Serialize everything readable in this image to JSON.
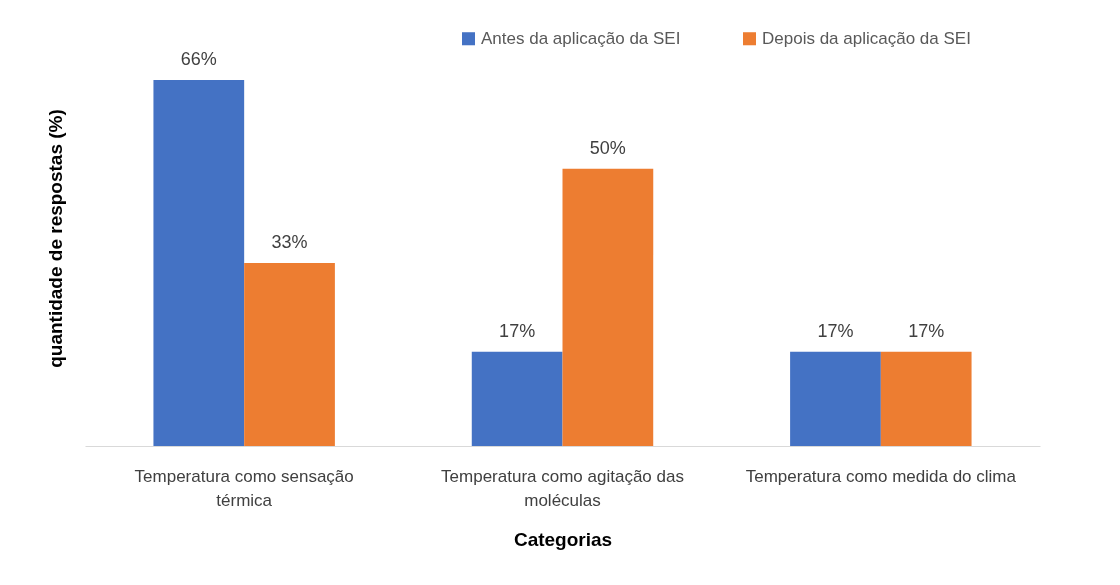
{
  "chart_data": {
    "type": "bar",
    "xlabel": "Categorias",
    "ylabel": "quantidade de respostas (%)",
    "categories": [
      "Temperatura como sensação térmica",
      "Temperatura como agitação das moléculas",
      "Temperatura como medida do clima"
    ],
    "series": [
      {
        "name": "Antes da aplicação da SEI",
        "color": "#4472c4",
        "values": [
          66,
          17,
          17
        ],
        "value_labels": [
          "66%",
          "17%",
          "17%"
        ]
      },
      {
        "name": "Depois da aplicação da SEI",
        "color": "#ed7d31",
        "values": [
          33,
          50,
          17
        ],
        "value_labels": [
          "33%",
          "50%",
          "17%"
        ]
      }
    ],
    "ylim": [
      0,
      75
    ],
    "grid": false,
    "legend": "top right"
  }
}
